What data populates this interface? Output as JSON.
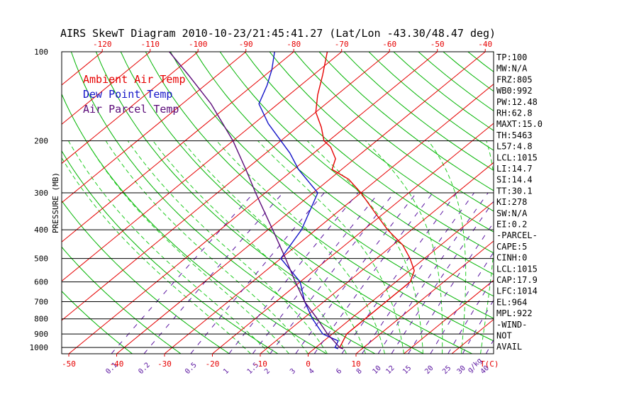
{
  "chart_data": {
    "type": "line",
    "title": "AIRS SkewT Diagram 2010-10-23/21:45:41.27 (Lat/Lon -43.30/48.47 deg)",
    "ylabel": "PRESSURE (MB)",
    "x_unit_label": "T(C)",
    "mixing_ratio_unit_label": "g/kg",
    "y_scale": "log",
    "ylim": [
      1050,
      100
    ],
    "xlim_bottom": [
      -55,
      12
    ],
    "legend": [
      {
        "label": "Ambient Air Temp",
        "color": "#e60000"
      },
      {
        "label": "Dew Point Temp",
        "color": "#1414c8"
      },
      {
        "label": "Air Parcel Temp",
        "color": "#5a0a78"
      }
    ],
    "pressure_ticks": [
      100,
      200,
      300,
      400,
      500,
      600,
      700,
      800,
      900,
      1000
    ],
    "pressure_tick_labels": [
      "100",
      "200",
      "300",
      "400",
      "500",
      "600",
      "700",
      "800",
      "900",
      "1000"
    ],
    "top_temp_ticks": [
      -120,
      -110,
      -100,
      -90,
      -80,
      -70,
      -60,
      -50,
      -40
    ],
    "top_temp_labels": [
      "-120",
      "-110",
      "-100",
      "-90",
      "-80",
      "-70",
      "-60",
      "-50",
      "-40"
    ],
    "bottom_temp_ticks": [
      -50,
      -40,
      -30,
      -20,
      -10,
      0,
      10
    ],
    "bottom_temp_labels": [
      "-50",
      "-40",
      "-30",
      "-20",
      "-10",
      "0",
      "10"
    ],
    "mixing_ratio_labels": [
      "0.1",
      "0.2",
      "0.5",
      "1",
      "1.5",
      "2",
      "3",
      "4",
      "6",
      "8",
      "10",
      "12",
      "15",
      "20",
      "25",
      "30",
      "40"
    ],
    "series": [
      {
        "name": "Ambient Air Temp",
        "color": "#e60000",
        "points": [
          [
            1010,
            6
          ],
          [
            1000,
            5
          ],
          [
            900,
            3
          ],
          [
            800,
            3
          ],
          [
            700,
            3
          ],
          [
            600,
            3
          ],
          [
            550,
            1
          ],
          [
            500,
            -3
          ],
          [
            450,
            -8
          ],
          [
            400,
            -15
          ],
          [
            350,
            -22
          ],
          [
            300,
            -30
          ],
          [
            270,
            -36
          ],
          [
            250,
            -42
          ],
          [
            230,
            -44
          ],
          [
            210,
            -48
          ],
          [
            200,
            -51
          ],
          [
            180,
            -55
          ],
          [
            160,
            -60
          ],
          [
            140,
            -64
          ],
          [
            120,
            -68
          ],
          [
            100,
            -73
          ]
        ]
      },
      {
        "name": "Dew Point Temp",
        "color": "#1414c8",
        "points": [
          [
            1010,
            5
          ],
          [
            1000,
            4
          ],
          [
            950,
            3
          ],
          [
            900,
            -2
          ],
          [
            800,
            -8
          ],
          [
            700,
            -14
          ],
          [
            600,
            -20
          ],
          [
            500,
            -30
          ],
          [
            400,
            -33
          ],
          [
            300,
            -39
          ],
          [
            250,
            -49
          ],
          [
            220,
            -55
          ],
          [
            200,
            -60
          ],
          [
            175,
            -67
          ],
          [
            150,
            -74
          ],
          [
            130,
            -77
          ],
          [
            115,
            -80
          ],
          [
            100,
            -84
          ]
        ]
      },
      {
        "name": "Air Parcel Temp",
        "color": "#5a0a78",
        "points": [
          [
            1010,
            6
          ],
          [
            1000,
            5
          ],
          [
            900,
            -1
          ],
          [
            800,
            -7
          ],
          [
            700,
            -14
          ],
          [
            600,
            -21
          ],
          [
            500,
            -29
          ],
          [
            400,
            -39
          ],
          [
            300,
            -52
          ],
          [
            250,
            -60
          ],
          [
            200,
            -70
          ],
          [
            150,
            -84
          ],
          [
            120,
            -96
          ],
          [
            100,
            -106
          ]
        ]
      }
    ],
    "indices": [
      "TP:100",
      "MW:N/A",
      "FRZ:805",
      "WB0:992",
      "PW:12.48",
      "RH:62.8",
      "MAXT:15.0",
      "TH:5463",
      "L57:4.8",
      "LCL:1015",
      "LI:14.7",
      "SI:14.4",
      "TT:30.1",
      "KI:278",
      "SW:N/A",
      "EI:0.2",
      "-PARCEL-",
      "CAPE:5",
      "CINH:0",
      "LCL:1015",
      "CAP:17.9",
      "LFC:1014",
      "EL:964",
      "MPL:922",
      "-WIND-",
      "NOT",
      "AVAIL"
    ],
    "colors": {
      "isotherm": "#e60000",
      "dry_adiabat": "#00b400",
      "moist_adiabat": "#22cc22",
      "mixing_ratio": "#5a14a0",
      "isobar": "#000000",
      "text": "#000000"
    },
    "grid": true,
    "legend_placement": "top-left"
  }
}
